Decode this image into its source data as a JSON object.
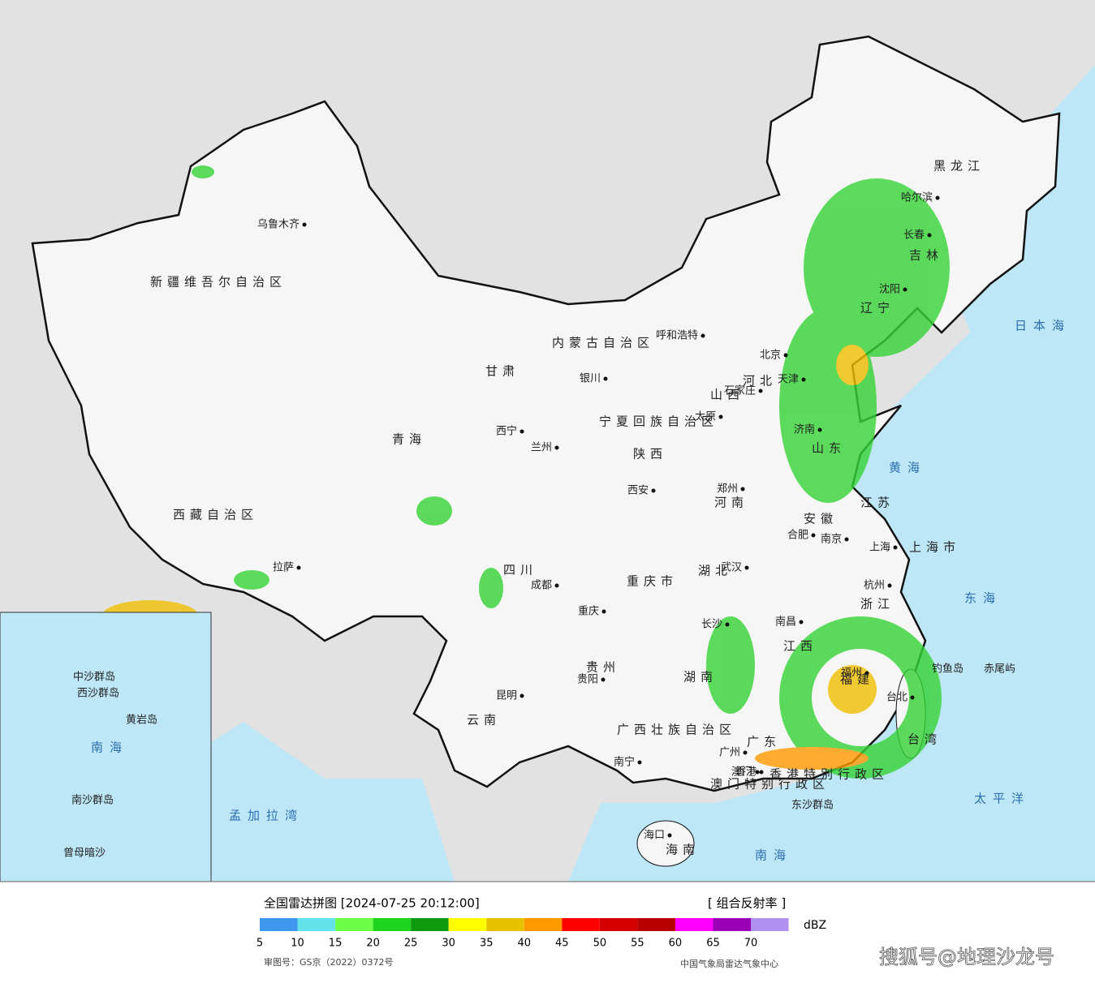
{
  "map": {
    "cities": [
      "乌鲁木齐",
      "呼和浩特",
      "北京",
      "天津",
      "石家庄",
      "太原",
      "银川",
      "西宁",
      "兰州",
      "西安",
      "郑州",
      "济南",
      "南京",
      "合肥",
      "上海",
      "杭州",
      "武汉",
      "长沙",
      "南昌",
      "福州",
      "台北",
      "广州",
      "香港",
      "澳门",
      "南宁",
      "海口",
      "贵阳",
      "重庆",
      "成都",
      "昆明",
      "拉萨",
      "哈尔滨",
      "长春",
      "沈阳"
    ],
    "regions": [
      "新疆维吾尔自治区",
      "西藏自治区",
      "青海",
      "甘肃",
      "内蒙古自治区",
      "宁夏回族自治区",
      "四川",
      "云南",
      "贵州",
      "广西壮族自治区",
      "广东",
      "湖南",
      "湖北",
      "江西",
      "福建",
      "浙江",
      "江苏",
      "安徽",
      "山东",
      "河南",
      "河北",
      "山西",
      "陕西",
      "辽宁",
      "吉林",
      "黑龙江",
      "重庆市",
      "上海市",
      "台湾",
      "海南",
      "香港特别行政区",
      "澳门特别行政区"
    ],
    "seas": [
      "日本海",
      "黄海",
      "东海",
      "南海",
      "太平洋",
      "孟加拉湾",
      "钓鱼岛",
      "赤尾屿",
      "东沙群岛"
    ],
    "inset_labels": [
      "南海",
      "中沙群岛",
      "西沙群岛",
      "黄岩岛",
      "南沙群岛",
      "曾母暗沙"
    ],
    "legend": {
      "title": "全国雷达拼图 [2024-07-25 20:12:00]",
      "product": "[ 组合反射率 ]",
      "unit": "dBZ",
      "ticks": [
        5,
        10,
        15,
        20,
        25,
        30,
        35,
        40,
        45,
        50,
        55,
        60,
        65,
        70
      ],
      "colors": [
        "#3f97ee",
        "#64e2ea",
        "#6cff4a",
        "#1ed41e",
        "#0e9a0e",
        "#ffff00",
        "#e6c200",
        "#ff9a00",
        "#ff0000",
        "#d40000",
        "#b80000",
        "#ff00ff",
        "#9a00b4",
        "#b090f0"
      ]
    },
    "footer": {
      "approval": "审图号：GS京（2022）0372号",
      "source": "中国气象局雷达气象中心"
    },
    "watermark": "搜狐号@地理沙龙号"
  }
}
